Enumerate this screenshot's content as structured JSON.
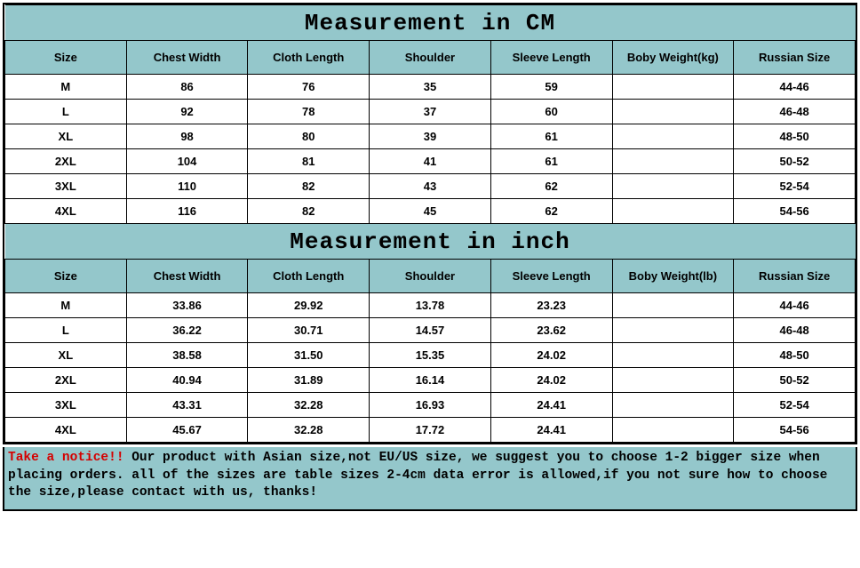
{
  "colors": {
    "header_bg": "#94c7cb",
    "border": "#000000",
    "data_bg": "#ffffff",
    "notice_lead": "#d40000",
    "notice_text": "#000000"
  },
  "cm_section": {
    "title": "Measurement in CM",
    "columns": [
      "Size",
      "Chest Width",
      "Cloth Length",
      "Shoulder",
      "Sleeve Length",
      "Boby Weight(kg)",
      "Russian Size"
    ],
    "rows": [
      [
        "M",
        "86",
        "76",
        "35",
        "59",
        "",
        "44-46"
      ],
      [
        "L",
        "92",
        "78",
        "37",
        "60",
        "",
        "46-48"
      ],
      [
        "XL",
        "98",
        "80",
        "39",
        "61",
        "",
        "48-50"
      ],
      [
        "2XL",
        "104",
        "81",
        "41",
        "61",
        "",
        "50-52"
      ],
      [
        "3XL",
        "110",
        "82",
        "43",
        "62",
        "",
        "52-54"
      ],
      [
        "4XL",
        "116",
        "82",
        "45",
        "62",
        "",
        "54-56"
      ]
    ]
  },
  "inch_section": {
    "title": "Measurement in inch",
    "columns": [
      "Size",
      "Chest Width",
      "Cloth Length",
      "Shoulder",
      "Sleeve Length",
      "Boby Weight(lb)",
      "Russian Size"
    ],
    "rows": [
      [
        "M",
        "33.86",
        "29.92",
        "13.78",
        "23.23",
        "",
        "44-46"
      ],
      [
        "L",
        "36.22",
        "30.71",
        "14.57",
        "23.62",
        "",
        "46-48"
      ],
      [
        "XL",
        "38.58",
        "31.50",
        "15.35",
        "24.02",
        "",
        "48-50"
      ],
      [
        "2XL",
        "40.94",
        "31.89",
        "16.14",
        "24.02",
        "",
        "50-52"
      ],
      [
        "3XL",
        "43.31",
        "32.28",
        "16.93",
        "24.41",
        "",
        "52-54"
      ],
      [
        "4XL",
        "45.67",
        "32.28",
        "17.72",
        "24.41",
        "",
        "54-56"
      ]
    ]
  },
  "notice": {
    "lead": "Take a notice!!",
    "text": " Our product with Asian size,not EU/US size, we suggest you to choose 1-2 bigger size when placing orders. all of the sizes are table sizes 2-4cm data error is allowed,if you not sure how to choose the size,please contact with us, thanks!"
  }
}
